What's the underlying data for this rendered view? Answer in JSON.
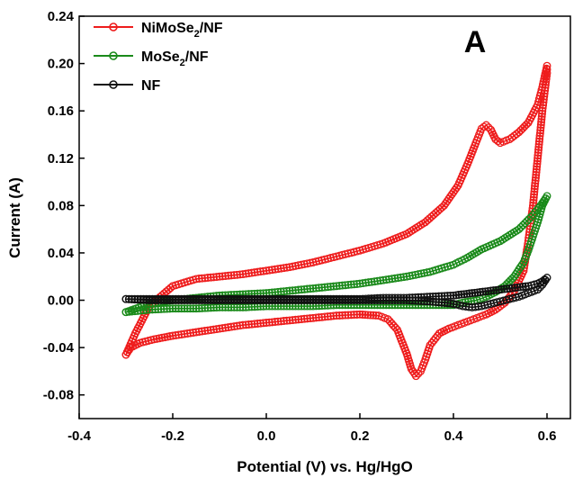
{
  "chart_data": {
    "type": "line",
    "panel_label": "A",
    "xlabel": "Potential (V) vs. Hg/HgO",
    "ylabel": "Current (A)",
    "xlim": [
      -0.4,
      0.65
    ],
    "ylim": [
      -0.1,
      0.24
    ],
    "xticks": [
      -0.4,
      -0.2,
      0.0,
      0.2,
      0.4,
      0.6
    ],
    "xtick_labels": [
      "-0.4",
      "-0.2",
      "0.0",
      "0.2",
      "0.4",
      "0.6"
    ],
    "yticks": [
      -0.08,
      -0.04,
      0.0,
      0.04,
      0.08,
      0.12,
      0.16,
      0.2,
      0.24
    ],
    "ytick_labels": [
      "-0.08",
      "-0.04",
      "0.00",
      "0.04",
      "0.08",
      "0.12",
      "0.16",
      "0.20",
      "0.24"
    ],
    "grid": false,
    "legend_position": "top-left",
    "series": [
      {
        "name": "NiMoSe2/NF",
        "legend_main": "NiMoSe",
        "legend_sub": "2",
        "legend_suffix": "/NF",
        "color": "#ee1c1c",
        "x": [
          -0.3,
          -0.28,
          -0.25,
          -0.2,
          -0.15,
          -0.1,
          -0.05,
          0.0,
          0.05,
          0.1,
          0.15,
          0.2,
          0.25,
          0.3,
          0.34,
          0.38,
          0.41,
          0.43,
          0.45,
          0.46,
          0.47,
          0.48,
          0.49,
          0.5,
          0.52,
          0.54,
          0.56,
          0.58,
          0.59,
          0.6,
          0.6,
          0.59,
          0.58,
          0.57,
          0.56,
          0.55,
          0.53,
          0.51,
          0.49,
          0.47,
          0.45,
          0.43,
          0.41,
          0.39,
          0.37,
          0.35,
          0.34,
          0.33,
          0.32,
          0.31,
          0.3,
          0.28,
          0.26,
          0.24,
          0.2,
          0.15,
          0.1,
          0.05,
          0.0,
          -0.05,
          -0.1,
          -0.15,
          -0.2,
          -0.24,
          -0.27,
          -0.29,
          -0.3
        ],
        "y": [
          -0.046,
          -0.028,
          -0.005,
          0.012,
          0.018,
          0.02,
          0.022,
          0.025,
          0.028,
          0.032,
          0.037,
          0.042,
          0.048,
          0.056,
          0.066,
          0.08,
          0.097,
          0.115,
          0.135,
          0.145,
          0.148,
          0.144,
          0.136,
          0.133,
          0.136,
          0.142,
          0.15,
          0.165,
          0.18,
          0.198,
          0.192,
          0.16,
          0.12,
          0.08,
          0.05,
          0.025,
          0.008,
          -0.002,
          -0.008,
          -0.012,
          -0.015,
          -0.018,
          -0.021,
          -0.024,
          -0.028,
          -0.038,
          -0.05,
          -0.06,
          -0.064,
          -0.058,
          -0.045,
          -0.025,
          -0.016,
          -0.013,
          -0.012,
          -0.013,
          -0.015,
          -0.017,
          -0.019,
          -0.021,
          -0.024,
          -0.027,
          -0.03,
          -0.033,
          -0.036,
          -0.04,
          -0.046
        ]
      },
      {
        "name": "MoSe2/NF",
        "legend_main": "MoSe",
        "legend_sub": "2",
        "legend_suffix": "/NF",
        "color": "#1a8a1a",
        "x": [
          -0.3,
          -0.25,
          -0.2,
          -0.15,
          -0.1,
          -0.05,
          0.0,
          0.05,
          0.1,
          0.15,
          0.2,
          0.25,
          0.3,
          0.35,
          0.4,
          0.43,
          0.46,
          0.5,
          0.54,
          0.57,
          0.59,
          0.6,
          0.59,
          0.58,
          0.57,
          0.56,
          0.55,
          0.53,
          0.51,
          0.49,
          0.47,
          0.45,
          0.42,
          0.4,
          0.35,
          0.3,
          0.25,
          0.2,
          0.15,
          0.1,
          0.05,
          0.0,
          -0.05,
          -0.1,
          -0.15,
          -0.2,
          -0.25,
          -0.3
        ],
        "y": [
          -0.01,
          -0.003,
          0.0,
          0.002,
          0.004,
          0.005,
          0.006,
          0.008,
          0.01,
          0.012,
          0.014,
          0.017,
          0.02,
          0.024,
          0.03,
          0.036,
          0.043,
          0.05,
          0.06,
          0.072,
          0.082,
          0.088,
          0.08,
          0.066,
          0.054,
          0.042,
          0.032,
          0.02,
          0.012,
          0.007,
          0.003,
          0.0,
          -0.002,
          -0.004,
          -0.004,
          -0.004,
          -0.004,
          -0.004,
          -0.004,
          -0.005,
          -0.005,
          -0.005,
          -0.006,
          -0.006,
          -0.007,
          -0.007,
          -0.008,
          -0.01
        ]
      },
      {
        "name": "NF",
        "legend_main": "NF",
        "legend_sub": "",
        "legend_suffix": "",
        "color": "#111111",
        "x": [
          -0.3,
          -0.25,
          -0.2,
          -0.15,
          -0.1,
          -0.05,
          0.0,
          0.05,
          0.1,
          0.15,
          0.2,
          0.25,
          0.3,
          0.35,
          0.4,
          0.44,
          0.48,
          0.52,
          0.56,
          0.58,
          0.59,
          0.6,
          0.59,
          0.58,
          0.56,
          0.54,
          0.52,
          0.5,
          0.48,
          0.46,
          0.44,
          0.42,
          0.4,
          0.35,
          0.3,
          0.25,
          0.2,
          0.15,
          0.1,
          0.05,
          0.0,
          -0.05,
          -0.1,
          -0.15,
          -0.2,
          -0.25,
          -0.3
        ],
        "y": [
          0.001,
          0.001,
          0.001,
          0.001,
          0.001,
          0.001,
          0.001,
          0.001,
          0.001,
          0.001,
          0.001,
          0.002,
          0.002,
          0.003,
          0.004,
          0.006,
          0.008,
          0.01,
          0.012,
          0.014,
          0.016,
          0.019,
          0.013,
          0.009,
          0.006,
          0.003,
          0.001,
          -0.001,
          -0.003,
          -0.005,
          -0.006,
          -0.005,
          -0.003,
          -0.001,
          0.0,
          0.0,
          0.0,
          0.0,
          0.0,
          0.0,
          0.0,
          0.0,
          0.0,
          0.0,
          0.0,
          0.0,
          0.001
        ]
      }
    ]
  }
}
